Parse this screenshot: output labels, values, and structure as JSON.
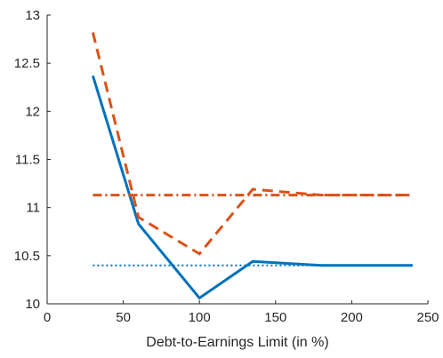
{
  "chart_data": {
    "type": "line",
    "title": "",
    "xlabel": "Debt-to-Earnings Limit (in %)",
    "ylabel": "",
    "xlim": [
      0,
      250
    ],
    "ylim": [
      10,
      13
    ],
    "xticks": [
      0,
      50,
      100,
      150,
      200,
      250
    ],
    "xtick_labels": [
      "0",
      "50",
      "100",
      "150",
      "200",
      "250"
    ],
    "yticks": [
      10,
      10.5,
      11,
      11.5,
      12,
      12.5,
      13
    ],
    "ytick_labels": [
      "10",
      "10.5",
      "11",
      "11.5",
      "12",
      "12.5",
      "13"
    ],
    "grid": false,
    "legend": "none",
    "series": [
      {
        "style": "solid",
        "color": "#0072BD",
        "x": [
          30,
          60,
          100,
          135,
          180,
          240
        ],
        "y": [
          12.37,
          10.83,
          10.06,
          10.44,
          10.4,
          10.4
        ]
      },
      {
        "style": "dashed",
        "color": "#D95319",
        "x": [
          30,
          60,
          100,
          135,
          180,
          240
        ],
        "y": [
          12.82,
          10.9,
          10.52,
          11.19,
          11.13,
          11.13
        ]
      },
      {
        "style": "dotted",
        "color": "#0072BD",
        "x": [
          30,
          240
        ],
        "y": [
          10.4,
          10.4
        ]
      },
      {
        "style": "dashdot",
        "color": "#D95319",
        "x": [
          30,
          240
        ],
        "y": [
          11.13,
          11.13
        ]
      }
    ]
  }
}
